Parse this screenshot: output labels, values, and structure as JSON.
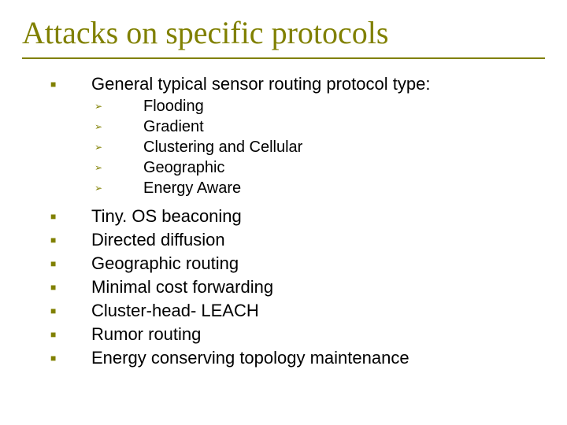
{
  "slide": {
    "title": "Attacks on specific protocols",
    "title_color": "#808000",
    "title_fontsize": 40,
    "accent_color": "#808000",
    "border_color": "#808000",
    "background_color": "#ffffff",
    "text_color": "#000000",
    "bullet1_glyph": "■",
    "bullet2_glyph": "➢",
    "level1_fontsize": 22,
    "level2_fontsize": 20,
    "items": {
      "intro": "General typical sensor routing protocol type:",
      "sub": {
        "s0": "Flooding",
        "s1": "Gradient",
        "s2": "Clustering and Cellular",
        "s3": "Geographic",
        "s4": "Energy Aware"
      },
      "m0": "Tiny. OS beaconing",
      "m1": "Directed diffusion",
      "m2": "Geographic routing",
      "m3": "Minimal cost forwarding",
      "m4": "Cluster-head- LEACH",
      "m5": "Rumor routing",
      "m6": "Energy conserving topology maintenance"
    }
  }
}
